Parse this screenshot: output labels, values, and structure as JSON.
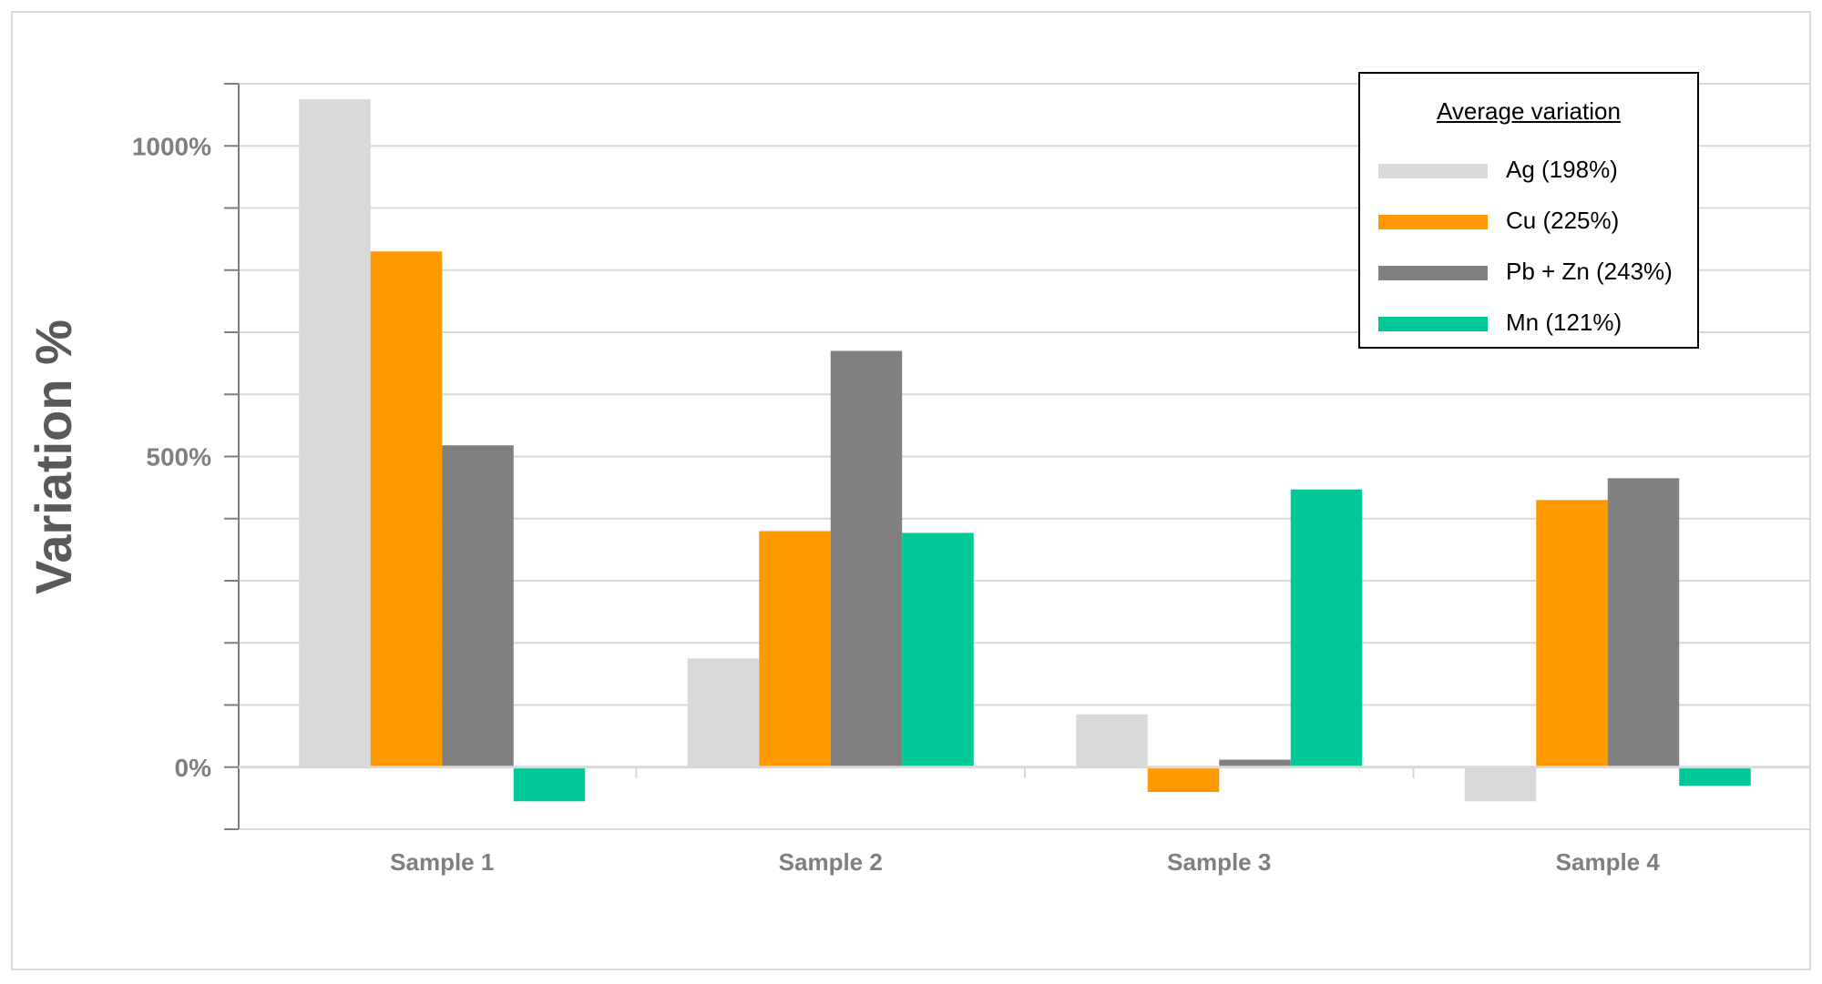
{
  "chart_data": {
    "type": "bar",
    "title": "",
    "xlabel": "",
    "ylabel": "Variation %",
    "categories": [
      "Sample 1",
      "Sample 2",
      "Sample 3",
      "Sample 4"
    ],
    "ylim": [
      -100,
      1100
    ],
    "y_ticks": [
      {
        "value": 0,
        "label": "0%"
      },
      {
        "value": 500,
        "label": "500%"
      },
      {
        "value": 1000,
        "label": "1000%"
      }
    ],
    "grid": true,
    "legend_position": "top-right",
    "legend_title": "Average variation",
    "series": [
      {
        "name": "Ag (198%)",
        "color": "#d9d9d9",
        "values": [
          1075,
          175,
          85,
          -55
        ]
      },
      {
        "name": "Cu (225%)",
        "color": "#ff9900",
        "values": [
          830,
          380,
          -40,
          430
        ]
      },
      {
        "name": "Pb + Zn (243%)",
        "color": "#808080",
        "values": [
          518,
          670,
          12,
          465
        ]
      },
      {
        "name": "Mn (121%)",
        "color": "#00c896",
        "values": [
          -55,
          377,
          447,
          -30
        ]
      }
    ]
  }
}
